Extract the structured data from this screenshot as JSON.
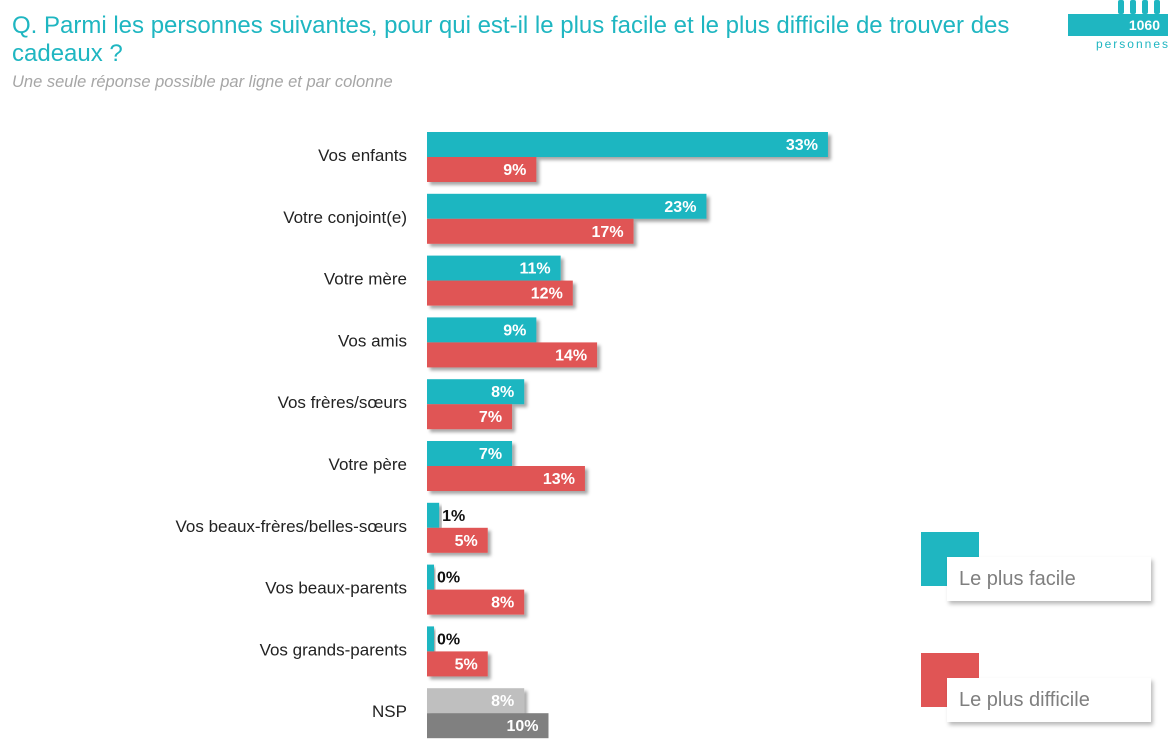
{
  "header": {
    "question": "Q. Parmi les personnes suivantes, pour qui est-il le plus facile et le plus difficile de trouver des cadeaux ?",
    "note": "Une seule réponse possible par ligne et par colonne"
  },
  "badge": {
    "count": "1060",
    "unit": "personnes",
    "icon": "people-icon"
  },
  "colors": {
    "accent": "#1fb6c1",
    "facile": "#1fb6c1",
    "difficile": "#e05555",
    "nsp_facile": "#bfbfbf",
    "nsp_difficile": "#808080"
  },
  "legend": [
    {
      "label": "Le plus facile",
      "color": "#1fb6c1"
    },
    {
      "label": "Le plus difficile",
      "color": "#e05555"
    }
  ],
  "chart_data": {
    "type": "bar",
    "orientation": "horizontal",
    "unit": "%",
    "categories": [
      "Vos enfants",
      "Votre conjoint(e)",
      "Votre mère",
      "Vos amis",
      "Vos frères/sœurs",
      "Votre père",
      "Vos beaux-frères/belles-sœurs",
      "Vos beaux-parents",
      "Vos grands-parents",
      "NSP"
    ],
    "series": [
      {
        "name": "Le plus facile",
        "values": [
          33,
          23,
          11,
          9,
          8,
          7,
          1,
          0,
          0,
          8
        ]
      },
      {
        "name": "Le plus difficile",
        "values": [
          9,
          17,
          12,
          14,
          7,
          13,
          5,
          8,
          5,
          10
        ]
      }
    ],
    "xlim": [
      0,
      35
    ],
    "grid": false,
    "legend_position": "bottom-right"
  }
}
